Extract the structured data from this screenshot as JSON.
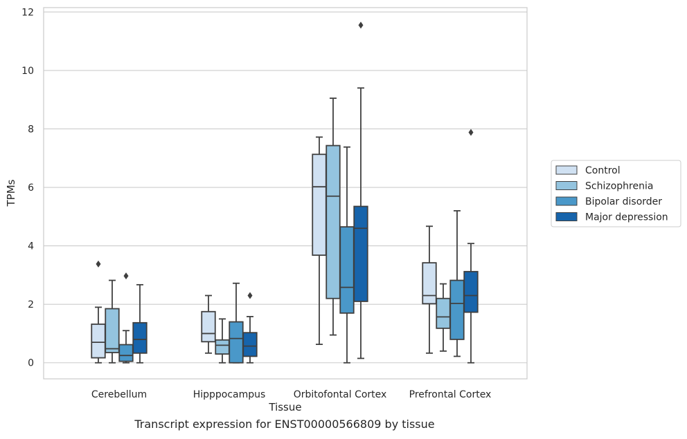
{
  "chart_data": {
    "type": "box",
    "xlabel": "Tissue",
    "ylabel": "TPMs",
    "ylim": [
      -0.55,
      12.15
    ],
    "yticks": [
      0,
      2,
      4,
      6,
      8,
      10,
      12
    ],
    "grid": "horizontal",
    "legend_position": "right",
    "categories": [
      "Cerebellum",
      "Hipppocampus",
      "Orbitofontal Cortex",
      "Prefrontal Cortex"
    ],
    "series": [
      {
        "name": "Control",
        "color": "#d0e1f2",
        "boxes": [
          {
            "whislo": 0,
            "q1": 0.17,
            "med": 0.7,
            "q3": 1.32,
            "whishi": 1.9,
            "fliers": [
              3.38
            ]
          },
          {
            "whislo": 0.33,
            "q1": 0.72,
            "med": 1.0,
            "q3": 1.75,
            "whishi": 2.3,
            "fliers": []
          },
          {
            "whislo": 0.63,
            "q1": 3.68,
            "med": 6.02,
            "q3": 7.13,
            "whishi": 7.72,
            "fliers": []
          },
          {
            "whislo": 0.33,
            "q1": 2.02,
            "med": 2.3,
            "q3": 3.42,
            "whishi": 4.67,
            "fliers": []
          }
        ]
      },
      {
        "name": "Schizophrenia",
        "color": "#94c4df",
        "boxes": [
          {
            "whislo": 0,
            "q1": 0.35,
            "med": 0.48,
            "q3": 1.85,
            "whishi": 2.82,
            "fliers": []
          },
          {
            "whislo": 0,
            "q1": 0.3,
            "med": 0.6,
            "q3": 0.78,
            "whishi": 1.5,
            "fliers": []
          },
          {
            "whislo": 0.95,
            "q1": 2.2,
            "med": 5.7,
            "q3": 7.43,
            "whishi": 9.05,
            "fliers": []
          },
          {
            "whislo": 0.4,
            "q1": 1.18,
            "med": 1.57,
            "q3": 2.2,
            "whishi": 2.7,
            "fliers": []
          }
        ]
      },
      {
        "name": "Bipolar disorder",
        "color": "#4a98c9",
        "boxes": [
          {
            "whislo": 0,
            "q1": 0.05,
            "med": 0.25,
            "q3": 0.62,
            "whishi": 1.1,
            "fliers": [
              2.97
            ]
          },
          {
            "whislo": 0,
            "q1": 0,
            "med": 0.83,
            "q3": 1.4,
            "whishi": 2.72,
            "fliers": []
          },
          {
            "whislo": 0,
            "q1": 1.7,
            "med": 2.58,
            "q3": 4.65,
            "whishi": 7.38,
            "fliers": []
          },
          {
            "whislo": 0.22,
            "q1": 0.8,
            "med": 2.03,
            "q3": 2.82,
            "whishi": 5.2,
            "fliers": []
          }
        ]
      },
      {
        "name": "Major depression",
        "color": "#1764ab",
        "boxes": [
          {
            "whislo": 0,
            "q1": 0.33,
            "med": 0.8,
            "q3": 1.37,
            "whishi": 2.67,
            "fliers": []
          },
          {
            "whislo": 0,
            "q1": 0.22,
            "med": 0.57,
            "q3": 1.03,
            "whishi": 1.58,
            "fliers": [
              2.3
            ]
          },
          {
            "whislo": 0.15,
            "q1": 2.1,
            "med": 4.6,
            "q3": 5.35,
            "whishi": 9.4,
            "fliers": [
              11.55
            ]
          },
          {
            "whislo": 0,
            "q1": 1.73,
            "med": 2.3,
            "q3": 3.12,
            "whishi": 4.08,
            "fliers": [
              7.88
            ]
          }
        ]
      }
    ]
  },
  "caption": "Transcript expression for ENST00000566809 by tissue"
}
